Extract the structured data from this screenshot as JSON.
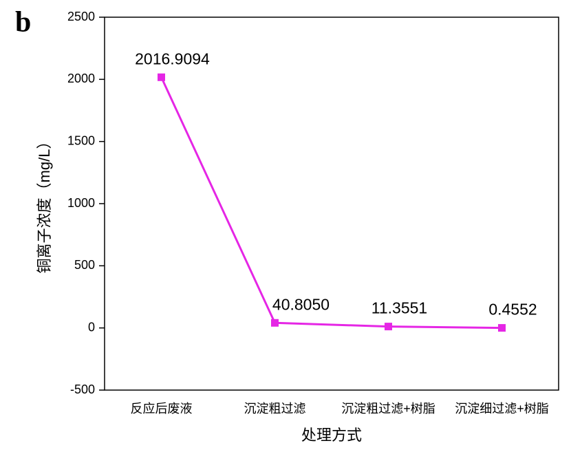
{
  "chart_data": {
    "type": "line",
    "panel_label": "b",
    "x_label": "处理方式",
    "y_label": "铜离子浓度（mg/L）",
    "categories": [
      "反应后废液",
      "沉淀粗过滤",
      "沉淀粗过滤+树脂",
      "沉淀细过滤+树脂"
    ],
    "values": [
      2016.9094,
      40.805,
      11.3551,
      0.4552
    ],
    "value_labels": [
      "2016.9094",
      "40.8050",
      "11.3551",
      "0.4552"
    ],
    "color": "#e526e5",
    "ylim": [
      -500,
      2500
    ],
    "yticks": [
      -500,
      0,
      500,
      1000,
      1500,
      2000,
      2500
    ]
  }
}
